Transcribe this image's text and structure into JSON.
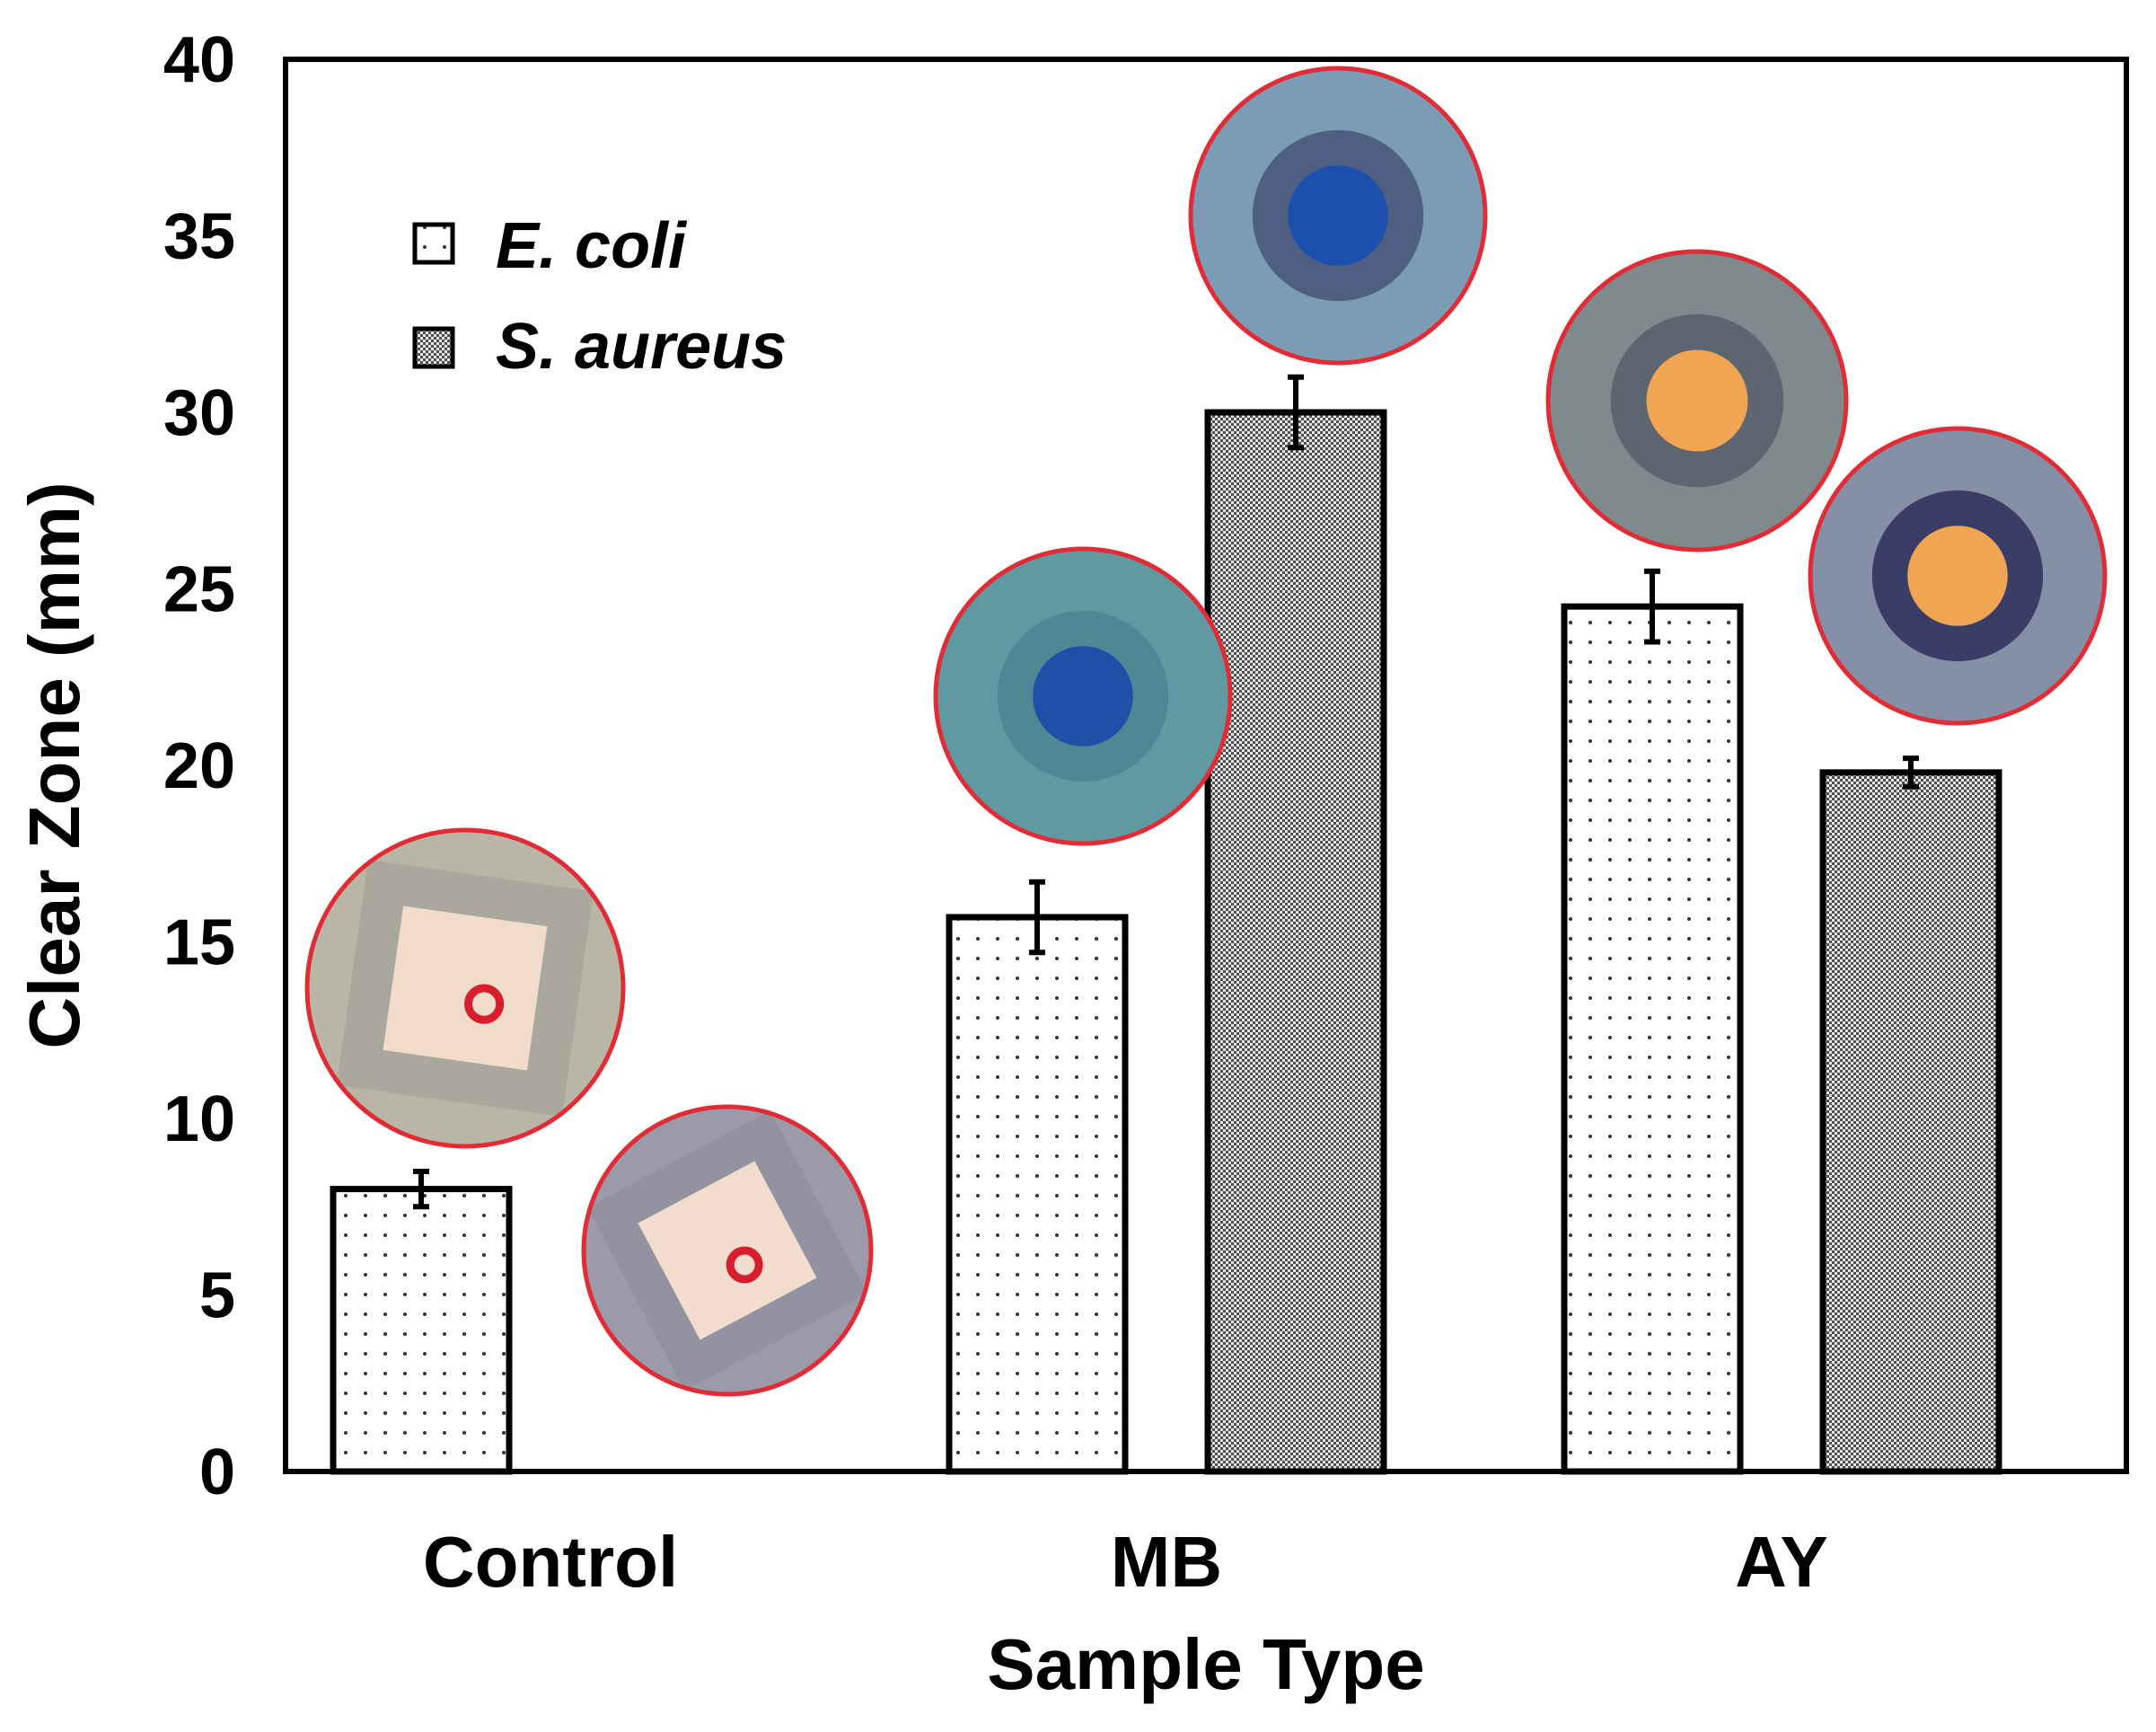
{
  "chart_data": {
    "type": "bar",
    "title": "",
    "xlabel": "Sample Type",
    "ylabel": "Clear Zone (mm)",
    "ylim": [
      0,
      40
    ],
    "yticks": [
      "0",
      "5",
      "10",
      "15",
      "20",
      "25",
      "30",
      "35",
      "40"
    ],
    "categories": [
      "Control",
      "MB",
      "AY"
    ],
    "series": [
      {
        "name": "E. coli",
        "pattern": "sparse-dots",
        "values": [
          8.0,
          15.7,
          24.5
        ],
        "errors": [
          0.5,
          1.0,
          1.0
        ]
      },
      {
        "name": "S. aureus",
        "pattern": "dense-dots",
        "values": [
          0.0,
          30.0,
          19.8
        ],
        "errors": [
          0.0,
          1.0,
          0.4
        ]
      }
    ],
    "legend_position": "top-left",
    "grid": false,
    "insets": [
      {
        "name": "control-ecoli-photo",
        "depicts": "square sample with red mark on agar",
        "colors": {
          "bg": "#b9b6a6",
          "zone": "#9e9c93",
          "center": "#f1dccb",
          "ring": "#e32b35"
        }
      },
      {
        "name": "control-saureus-photo",
        "depicts": "square sample with red mark on agar",
        "colors": {
          "bg": "#9a9aa8",
          "zone": "#8d8d9a",
          "center": "#f2dccd",
          "ring": "#e32b35"
        }
      },
      {
        "name": "mb-ecoli-photo",
        "depicts": "blue dyed disc on agar",
        "colors": {
          "bg": "#5f9aa3",
          "zone": "#4f8894",
          "center": "#1f4fa6",
          "ring": "#e32b35"
        }
      },
      {
        "name": "mb-saureus-photo",
        "depicts": "blue dyed disc with clear zone",
        "colors": {
          "bg": "#7b9cb4",
          "zone": "#4e5f82",
          "center": "#1d4fae",
          "ring": "#e32b35"
        }
      },
      {
        "name": "ay-ecoli-photo",
        "depicts": "yellow dyed disc with clear zone",
        "colors": {
          "bg": "#7f8a8d",
          "zone": "#5d6670",
          "center": "#f0a553",
          "ring": "#e32b35"
        }
      },
      {
        "name": "ay-saureus-photo",
        "depicts": "yellow dyed disc with clear zone",
        "colors": {
          "bg": "#8590a6",
          "zone": "#3a3e66",
          "center": "#f0a553",
          "ring": "#e32b35"
        }
      }
    ]
  }
}
